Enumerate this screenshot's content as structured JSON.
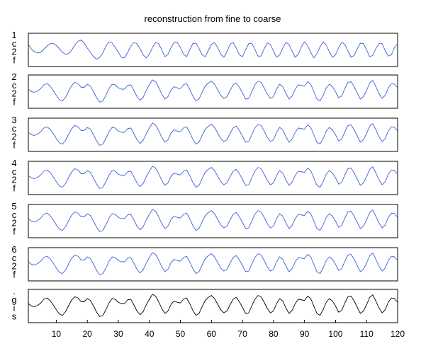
{
  "chart_data": {
    "type": "line",
    "title": "reconstruction from fine to coarse",
    "xlabel": "",
    "ylabel": "",
    "xlim": [
      1,
      120
    ],
    "x_ticks": [
      10,
      20,
      30,
      40,
      50,
      60,
      70,
      80,
      90,
      100,
      110,
      120
    ],
    "grid": false,
    "legend": "none",
    "colors": {
      "reconstruction": "#3b5fd8",
      "signal": "#000000",
      "frame": "#000000"
    },
    "panels": [
      {
        "label": "1 c 2 f",
        "color": "reconstruction",
        "values": [
          0.45,
          0.05,
          -0.15,
          -0.25,
          -0.2,
          0.05,
          0.3,
          0.5,
          0.55,
          0.35,
          0.1,
          -0.2,
          -0.35,
          -0.3,
          0.0,
          0.4,
          0.7,
          0.8,
          0.55,
          0.15,
          -0.2,
          -0.55,
          -0.75,
          -0.6,
          -0.25,
          0.3,
          0.65,
          0.55,
          0.2,
          -0.2,
          -0.6,
          -0.65,
          -0.2,
          0.3,
          0.6,
          0.5,
          0.1,
          -0.4,
          -0.65,
          -0.35,
          0.2,
          0.6,
          0.5,
          0.0,
          -0.55,
          -0.35,
          0.2,
          0.6,
          0.6,
          0.2,
          -0.35,
          -0.55,
          0.0,
          0.5,
          0.55,
          0.1,
          -0.4,
          -0.55,
          -0.05,
          0.45,
          0.6,
          0.2,
          -0.35,
          -0.6,
          -0.15,
          0.45,
          0.6,
          0.15,
          -0.4,
          -0.55,
          0.0,
          0.5,
          0.55,
          0.05,
          -0.5,
          -0.5,
          0.1,
          0.55,
          0.45,
          -0.1,
          -0.6,
          -0.4,
          0.15,
          0.6,
          0.45,
          -0.1,
          -0.6,
          -0.35,
          0.25,
          0.65,
          0.35,
          -0.2,
          -0.65,
          -0.3,
          0.25,
          0.65,
          0.4,
          -0.15,
          -0.6,
          -0.4,
          0.2,
          0.6,
          0.45,
          -0.1,
          -0.6,
          -0.45,
          0.1,
          0.55,
          0.5,
          0.0,
          -0.55,
          -0.45,
          0.1,
          0.5,
          0.5,
          -0.05,
          -0.5,
          -0.4,
          0.2,
          0.5
        ]
      },
      {
        "label": "2 c 2 f",
        "color": "reconstruction",
        "values": [
          0.2,
          0.0,
          -0.05,
          0.05,
          0.25,
          0.55,
          0.65,
          0.45,
          0.1,
          -0.3,
          -0.65,
          -0.75,
          -0.45,
          0.05,
          0.5,
          0.75,
          0.65,
          0.35,
          0.35,
          0.6,
          0.45,
          0.0,
          -0.5,
          -0.85,
          -0.75,
          -0.3,
          0.25,
          0.6,
          0.55,
          0.3,
          0.2,
          0.2,
          0.5,
          0.55,
          0.1,
          -0.4,
          -0.7,
          -0.45,
          0.1,
          0.55,
          0.95,
          0.8,
          0.35,
          -0.2,
          -0.6,
          -0.4,
          0.15,
          0.4,
          0.3,
          0.25,
          0.55,
          0.65,
          0.2,
          -0.35,
          -0.75,
          -0.6,
          -0.05,
          0.45,
          0.7,
          0.85,
          0.6,
          0.15,
          -0.3,
          -0.55,
          -0.4,
          0.1,
          0.55,
          0.7,
          0.35,
          -0.1,
          -0.6,
          -0.55,
          0.0,
          0.55,
          0.85,
          0.75,
          0.3,
          -0.2,
          -0.55,
          -0.4,
          0.2,
          0.6,
          0.4,
          -0.15,
          -0.6,
          -0.35,
          0.2,
          0.55,
          0.5,
          0.45,
          0.8,
          0.6,
          0.0,
          -0.6,
          -0.75,
          -0.3,
          0.3,
          0.6,
          0.4,
          0.0,
          -0.5,
          -0.35,
          0.25,
          0.75,
          0.8,
          0.4,
          -0.1,
          -0.6,
          -0.4,
          0.1,
          0.7,
          0.9,
          0.4,
          -0.15,
          -0.55,
          -0.3,
          0.3,
          0.65,
          0.6,
          0.3
        ]
      },
      {
        "label": "3 c 2 f",
        "color": "reconstruction",
        "values": [
          0.2,
          0.0,
          -0.05,
          0.05,
          0.25,
          0.55,
          0.65,
          0.45,
          0.1,
          -0.3,
          -0.65,
          -0.75,
          -0.45,
          0.05,
          0.5,
          0.75,
          0.65,
          0.35,
          0.35,
          0.6,
          0.45,
          0.0,
          -0.5,
          -0.85,
          -0.75,
          -0.3,
          0.25,
          0.6,
          0.55,
          0.3,
          0.2,
          0.2,
          0.5,
          0.55,
          0.1,
          -0.4,
          -0.7,
          -0.45,
          0.1,
          0.55,
          0.95,
          0.8,
          0.35,
          -0.2,
          -0.6,
          -0.4,
          0.15,
          0.4,
          0.3,
          0.25,
          0.55,
          0.65,
          0.2,
          -0.35,
          -0.75,
          -0.6,
          -0.05,
          0.45,
          0.7,
          0.85,
          0.6,
          0.15,
          -0.3,
          -0.55,
          -0.4,
          0.1,
          0.55,
          0.7,
          0.35,
          -0.1,
          -0.6,
          -0.55,
          0.0,
          0.55,
          0.85,
          0.75,
          0.3,
          -0.2,
          -0.55,
          -0.4,
          0.2,
          0.6,
          0.4,
          -0.15,
          -0.6,
          -0.35,
          0.2,
          0.55,
          0.5,
          0.45,
          0.8,
          0.6,
          0.0,
          -0.6,
          -0.75,
          -0.3,
          0.3,
          0.6,
          0.4,
          0.0,
          -0.5,
          -0.35,
          0.25,
          0.75,
          0.8,
          0.4,
          -0.1,
          -0.6,
          -0.4,
          0.1,
          0.7,
          0.9,
          0.4,
          -0.15,
          -0.55,
          -0.3,
          0.3,
          0.65,
          0.6,
          0.3
        ]
      },
      {
        "label": "4 c 2 f",
        "color": "reconstruction",
        "values": [
          0.2,
          0.0,
          -0.05,
          0.05,
          0.25,
          0.55,
          0.65,
          0.45,
          0.1,
          -0.3,
          -0.65,
          -0.75,
          -0.45,
          0.05,
          0.5,
          0.75,
          0.65,
          0.35,
          0.35,
          0.6,
          0.45,
          0.0,
          -0.5,
          -0.85,
          -0.75,
          -0.3,
          0.25,
          0.6,
          0.55,
          0.3,
          0.2,
          0.2,
          0.5,
          0.55,
          0.1,
          -0.4,
          -0.7,
          -0.45,
          0.1,
          0.55,
          0.95,
          0.8,
          0.35,
          -0.2,
          -0.6,
          -0.4,
          0.15,
          0.4,
          0.3,
          0.25,
          0.55,
          0.65,
          0.2,
          -0.35,
          -0.75,
          -0.6,
          -0.05,
          0.45,
          0.7,
          0.85,
          0.6,
          0.15,
          -0.3,
          -0.55,
          -0.4,
          0.1,
          0.55,
          0.7,
          0.35,
          -0.1,
          -0.6,
          -0.55,
          0.0,
          0.55,
          0.85,
          0.75,
          0.3,
          -0.2,
          -0.55,
          -0.4,
          0.2,
          0.6,
          0.4,
          -0.15,
          -0.6,
          -0.35,
          0.2,
          0.55,
          0.5,
          0.45,
          0.8,
          0.6,
          0.0,
          -0.6,
          -0.75,
          -0.3,
          0.3,
          0.6,
          0.4,
          0.0,
          -0.5,
          -0.35,
          0.25,
          0.75,
          0.8,
          0.4,
          -0.1,
          -0.6,
          -0.4,
          0.1,
          0.7,
          0.9,
          0.4,
          -0.15,
          -0.55,
          -0.3,
          0.3,
          0.65,
          0.6,
          0.3
        ]
      },
      {
        "label": "5 c 2 f",
        "color": "reconstruction",
        "values": [
          0.2,
          0.0,
          -0.05,
          0.05,
          0.25,
          0.55,
          0.65,
          0.45,
          0.1,
          -0.3,
          -0.65,
          -0.75,
          -0.45,
          0.05,
          0.5,
          0.75,
          0.65,
          0.35,
          0.35,
          0.6,
          0.45,
          0.0,
          -0.5,
          -0.85,
          -0.75,
          -0.3,
          0.25,
          0.6,
          0.55,
          0.3,
          0.2,
          0.2,
          0.5,
          0.55,
          0.1,
          -0.4,
          -0.7,
          -0.45,
          0.1,
          0.55,
          0.95,
          0.8,
          0.35,
          -0.2,
          -0.6,
          -0.4,
          0.15,
          0.4,
          0.3,
          0.25,
          0.55,
          0.65,
          0.2,
          -0.35,
          -0.75,
          -0.6,
          -0.05,
          0.45,
          0.7,
          0.85,
          0.6,
          0.15,
          -0.3,
          -0.55,
          -0.4,
          0.1,
          0.55,
          0.7,
          0.35,
          -0.1,
          -0.6,
          -0.55,
          0.0,
          0.55,
          0.85,
          0.75,
          0.3,
          -0.2,
          -0.55,
          -0.4,
          0.2,
          0.6,
          0.4,
          -0.15,
          -0.6,
          -0.35,
          0.2,
          0.55,
          0.5,
          0.45,
          0.8,
          0.6,
          0.0,
          -0.6,
          -0.75,
          -0.3,
          0.3,
          0.6,
          0.4,
          0.0,
          -0.5,
          -0.35,
          0.25,
          0.75,
          0.8,
          0.4,
          -0.1,
          -0.6,
          -0.4,
          0.1,
          0.7,
          0.9,
          0.4,
          -0.15,
          -0.55,
          -0.3,
          0.3,
          0.65,
          0.6,
          0.3
        ]
      },
      {
        "label": "6 c 2 f",
        "color": "reconstruction",
        "values": [
          0.2,
          0.0,
          -0.05,
          0.05,
          0.25,
          0.55,
          0.65,
          0.45,
          0.1,
          -0.3,
          -0.65,
          -0.75,
          -0.45,
          0.05,
          0.5,
          0.75,
          0.65,
          0.35,
          0.35,
          0.6,
          0.45,
          0.0,
          -0.5,
          -0.85,
          -0.75,
          -0.3,
          0.25,
          0.6,
          0.55,
          0.3,
          0.2,
          0.2,
          0.5,
          0.55,
          0.1,
          -0.4,
          -0.7,
          -0.45,
          0.1,
          0.55,
          0.95,
          0.8,
          0.35,
          -0.2,
          -0.6,
          -0.4,
          0.15,
          0.4,
          0.3,
          0.25,
          0.55,
          0.65,
          0.2,
          -0.35,
          -0.75,
          -0.6,
          -0.05,
          0.45,
          0.7,
          0.85,
          0.6,
          0.15,
          -0.3,
          -0.55,
          -0.4,
          0.1,
          0.55,
          0.7,
          0.35,
          -0.1,
          -0.6,
          -0.55,
          0.0,
          0.55,
          0.85,
          0.75,
          0.3,
          -0.2,
          -0.55,
          -0.4,
          0.2,
          0.6,
          0.4,
          -0.15,
          -0.6,
          -0.35,
          0.2,
          0.55,
          0.5,
          0.45,
          0.8,
          0.6,
          0.0,
          -0.6,
          -0.75,
          -0.3,
          0.3,
          0.6,
          0.4,
          0.0,
          -0.5,
          -0.35,
          0.25,
          0.75,
          0.8,
          0.4,
          -0.1,
          -0.6,
          -0.4,
          0.1,
          0.7,
          0.9,
          0.4,
          -0.15,
          -0.55,
          -0.3,
          0.3,
          0.65,
          0.6,
          0.3
        ]
      },
      {
        "label": ". g i s",
        "color": "signal",
        "values": [
          0.2,
          0.0,
          -0.05,
          0.05,
          0.25,
          0.55,
          0.65,
          0.45,
          0.1,
          -0.3,
          -0.65,
          -0.75,
          -0.45,
          0.05,
          0.5,
          0.75,
          0.65,
          0.35,
          0.35,
          0.6,
          0.45,
          0.0,
          -0.5,
          -0.85,
          -0.75,
          -0.3,
          0.25,
          0.6,
          0.55,
          0.3,
          0.2,
          0.2,
          0.5,
          0.55,
          0.1,
          -0.4,
          -0.7,
          -0.45,
          0.1,
          0.55,
          0.95,
          0.8,
          0.35,
          -0.2,
          -0.6,
          -0.4,
          0.15,
          0.4,
          0.3,
          0.25,
          0.55,
          0.65,
          0.2,
          -0.35,
          -0.75,
          -0.6,
          -0.05,
          0.45,
          0.7,
          0.85,
          0.6,
          0.15,
          -0.3,
          -0.55,
          -0.4,
          0.1,
          0.55,
          0.7,
          0.35,
          -0.1,
          -0.6,
          -0.55,
          0.0,
          0.55,
          0.85,
          0.75,
          0.3,
          -0.2,
          -0.55,
          -0.4,
          0.2,
          0.6,
          0.4,
          -0.15,
          -0.6,
          -0.35,
          0.2,
          0.55,
          0.5,
          0.45,
          0.8,
          0.6,
          0.0,
          -0.6,
          -0.75,
          -0.3,
          0.3,
          0.6,
          0.4,
          0.0,
          -0.5,
          -0.35,
          0.25,
          0.75,
          0.8,
          0.4,
          -0.1,
          -0.6,
          -0.4,
          0.1,
          0.7,
          0.9,
          0.4,
          -0.15,
          -0.55,
          -0.3,
          0.3,
          0.65,
          0.6,
          0.3
        ]
      }
    ]
  }
}
